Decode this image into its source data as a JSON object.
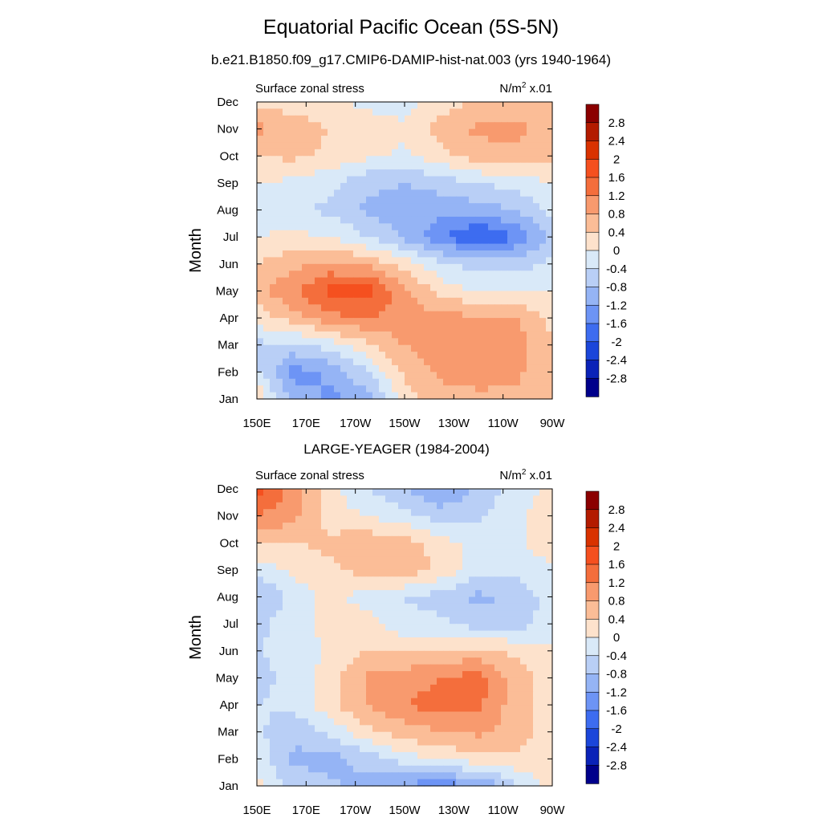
{
  "page": {
    "title": "Equatorial Pacific Ocean (5S-5N)",
    "subtitle": "b.e21.B1850.f09_g17.CMIP6-DAMIP-hist-nat.003 (yrs 1940-1964)"
  },
  "colorbar": {
    "labels": [
      "2.8",
      "2.4",
      "2",
      "1.6",
      "1.2",
      "0.8",
      "0.4",
      "0",
      "-0.4",
      "-0.8",
      "-1.2",
      "-1.6",
      "-2",
      "-2.4",
      "-2.8"
    ],
    "colors": [
      "#8b0000",
      "#b31b00",
      "#d93200",
      "#f5501f",
      "#f46e3c",
      "#f89a6e",
      "#fbbd97",
      "#fde2cc",
      "#d9e9f8",
      "#b9cff6",
      "#95b4f5",
      "#6d94f5",
      "#3d6cf0",
      "#1b46da",
      "#0a22b8",
      "#00008b"
    ]
  },
  "chart_data": [
    {
      "type": "heatmap",
      "title": "",
      "left_string": "Surface zonal stress",
      "right_string": "N/m",
      "right_string_sup": "2",
      "right_string_suffix": " x.01",
      "ylabel": "Month",
      "xlabel": "",
      "x_ticks": [
        "150E",
        "170E",
        "170W",
        "150W",
        "130W",
        "110W",
        "90W"
      ],
      "x_tick_lon": [
        150,
        170,
        190,
        210,
        230,
        250,
        270
      ],
      "y_ticks": [
        "Jan",
        "Feb",
        "Mar",
        "Apr",
        "May",
        "Jun",
        "Jul",
        "Aug",
        "Sep",
        "Oct",
        "Nov",
        "Dec"
      ],
      "xlim": [
        150,
        270
      ],
      "ylim": [
        1,
        12
      ],
      "grid_lon": [
        150,
        165,
        180,
        195,
        210,
        225,
        240,
        255,
        270
      ],
      "grid_month": [
        "Jan",
        "Feb",
        "Mar",
        "Apr",
        "May",
        "Jun",
        "Jul",
        "Aug",
        "Sep",
        "Oct",
        "Nov",
        "Dec"
      ],
      "values": [
        [
          0.4,
          -1.0,
          -1.3,
          -1.0,
          0.2,
          0.6,
          0.7,
          0.7,
          0.4
        ],
        [
          -0.3,
          -1.4,
          -1.1,
          -0.4,
          0.5,
          0.9,
          1.0,
          0.9,
          0.4
        ],
        [
          -0.5,
          -0.5,
          -0.2,
          0.3,
          0.8,
          1.1,
          1.2,
          1.0,
          0.4
        ],
        [
          0.2,
          0.6,
          1.1,
          1.2,
          1.1,
          0.9,
          0.9,
          0.8,
          0.3
        ],
        [
          0.6,
          1.2,
          1.7,
          1.8,
          0.9,
          0.2,
          0.0,
          0.0,
          0.0
        ],
        [
          0.4,
          0.7,
          0.9,
          0.7,
          0.2,
          -0.3,
          -0.6,
          -0.6,
          -0.3
        ],
        [
          0.0,
          0.1,
          0.0,
          -0.4,
          -0.9,
          -1.5,
          -2.1,
          -1.6,
          -0.6
        ],
        [
          -0.2,
          -0.3,
          -0.5,
          -0.9,
          -1.0,
          -1.1,
          -1.0,
          -0.8,
          -0.3
        ],
        [
          0.0,
          -0.1,
          -0.3,
          -0.7,
          -0.8,
          -0.6,
          -0.4,
          -0.2,
          0.0
        ],
        [
          0.4,
          0.5,
          0.3,
          0.1,
          -0.1,
          0.3,
          0.6,
          0.7,
          0.5
        ],
        [
          0.9,
          0.6,
          0.4,
          0.2,
          0.1,
          0.6,
          0.9,
          0.9,
          0.6
        ],
        [
          0.3,
          0.2,
          0.1,
          -0.1,
          -0.2,
          0.2,
          0.5,
          0.6,
          0.4
        ]
      ]
    },
    {
      "type": "heatmap",
      "title": "LARGE-YEAGER (1984-2004)",
      "left_string": "Surface zonal stress",
      "right_string": "N/m",
      "right_string_sup": "2",
      "right_string_suffix": " x.01",
      "ylabel": "Month",
      "xlabel": "",
      "x_ticks": [
        "150E",
        "170E",
        "170W",
        "150W",
        "130W",
        "110W",
        "90W"
      ],
      "x_tick_lon": [
        150,
        170,
        190,
        210,
        230,
        250,
        270
      ],
      "y_ticks": [
        "Jan",
        "Feb",
        "Mar",
        "Apr",
        "May",
        "Jun",
        "Jul",
        "Aug",
        "Sep",
        "Oct",
        "Nov",
        "Dec"
      ],
      "xlim": [
        150,
        270
      ],
      "ylim": [
        1,
        12
      ],
      "grid_lon": [
        150,
        165,
        180,
        195,
        210,
        225,
        240,
        255,
        270
      ],
      "grid_month": [
        "Jan",
        "Feb",
        "Mar",
        "Apr",
        "May",
        "Jun",
        "Jul",
        "Aug",
        "Sep",
        "Oct",
        "Nov",
        "Dec"
      ],
      "values": [
        [
          0.1,
          -0.5,
          -0.7,
          -1.0,
          -1.3,
          -1.5,
          -1.2,
          -0.5,
          0.2
        ],
        [
          -0.2,
          -0.9,
          -1.0,
          -0.6,
          -0.2,
          0.1,
          0.2,
          0.3,
          0.2
        ],
        [
          -0.3,
          -0.7,
          -0.3,
          0.3,
          0.6,
          0.8,
          0.9,
          0.6,
          0.2
        ],
        [
          -0.4,
          -0.3,
          0.3,
          0.8,
          1.2,
          1.4,
          1.3,
          0.6,
          0.2
        ],
        [
          -0.5,
          -0.3,
          0.2,
          0.9,
          1.0,
          1.2,
          1.4,
          0.6,
          0.2
        ],
        [
          -0.4,
          -0.3,
          0.1,
          0.4,
          0.4,
          0.5,
          0.5,
          0.3,
          0.1
        ],
        [
          -0.5,
          -0.2,
          0.2,
          0.2,
          -0.3,
          -0.3,
          -0.6,
          -0.6,
          -0.2
        ],
        [
          -0.9,
          -0.2,
          0.1,
          -0.2,
          -0.4,
          -0.6,
          -0.9,
          -0.7,
          -0.2
        ],
        [
          -0.3,
          0.1,
          0.3,
          0.6,
          0.7,
          0.3,
          -0.3,
          -0.3,
          -0.1
        ],
        [
          0.5,
          0.4,
          0.5,
          0.7,
          0.6,
          0.2,
          -0.2,
          -0.1,
          0.3
        ],
        [
          1.2,
          0.9,
          0.2,
          0.0,
          -0.3,
          -0.6,
          -0.5,
          -0.1,
          0.2
        ],
        [
          1.8,
          1.0,
          0.1,
          -0.4,
          -0.8,
          -1.2,
          -0.7,
          -0.2,
          0.1
        ]
      ]
    }
  ]
}
